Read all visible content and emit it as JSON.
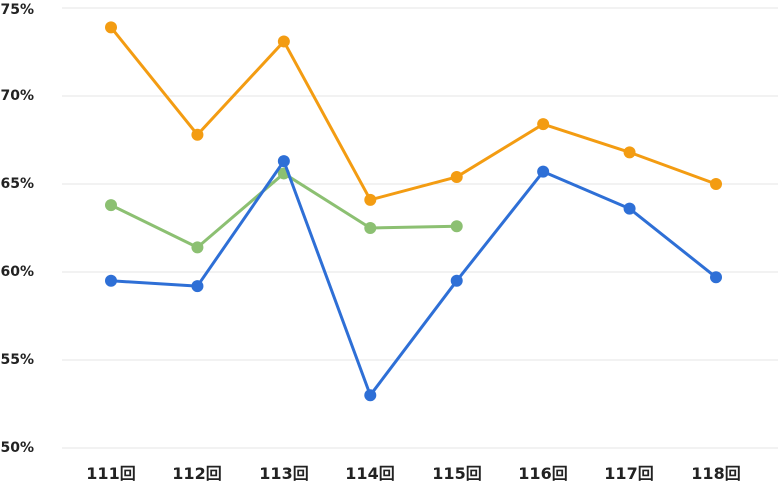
{
  "chart_data": {
    "type": "line",
    "title": "",
    "xlabel": "",
    "ylabel": "",
    "categories": [
      "111回",
      "112回",
      "113回",
      "114回",
      "115回",
      "116回",
      "117回",
      "118回"
    ],
    "y_ticks": [
      "50%",
      "55%",
      "60%",
      "65%",
      "70%",
      "75%"
    ],
    "ylim": [
      50,
      75
    ],
    "grid": true,
    "legend": "none",
    "series": [
      {
        "color": "#f39c12",
        "values": [
          73.9,
          67.8,
          73.1,
          64.1,
          65.4,
          68.4,
          66.8,
          65.0
        ]
      },
      {
        "color": "#8cc072",
        "values": [
          63.8,
          61.4,
          65.6,
          62.5,
          62.6,
          null,
          null,
          null
        ]
      },
      {
        "color": "#2e6fd6",
        "values": [
          59.5,
          59.2,
          66.3,
          53.0,
          59.5,
          65.7,
          63.6,
          59.7
        ]
      }
    ]
  }
}
